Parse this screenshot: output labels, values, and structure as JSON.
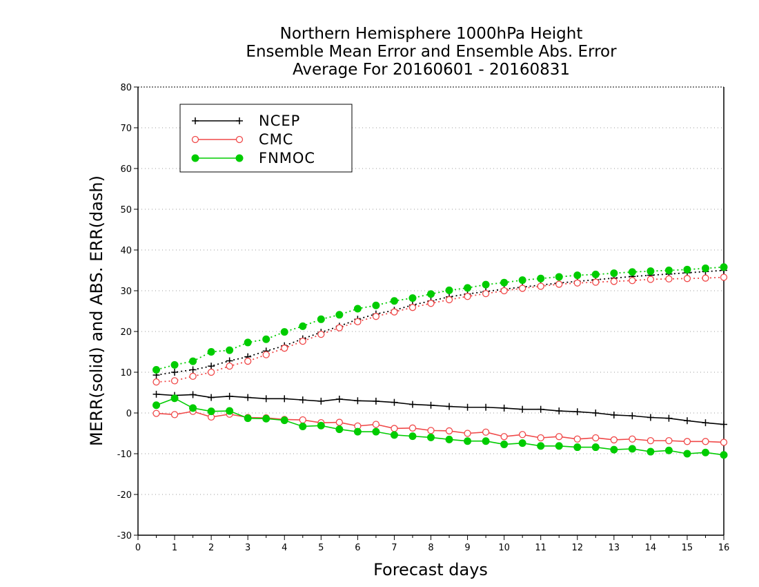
{
  "chart_data": {
    "type": "line",
    "title": [
      "Northern Hemisphere 1000hPa Height",
      "Ensemble Mean Error and Ensemble Abs. Error",
      "Average For 20160601 - 20160831"
    ],
    "xlabel": "Forecast days",
    "ylabel": "MERR(solid) and ABS. ERR(dash)",
    "xlim": [
      0,
      16
    ],
    "ylim": [
      -30,
      80
    ],
    "xticks": [
      0,
      1,
      2,
      3,
      4,
      5,
      6,
      7,
      8,
      9,
      10,
      11,
      12,
      13,
      14,
      15,
      16
    ],
    "yticks": [
      -30,
      -20,
      -10,
      0,
      10,
      20,
      30,
      40,
      50,
      60,
      70,
      80
    ],
    "grid": true,
    "legend_position": "top-left",
    "x": [
      0.5,
      1,
      1.5,
      2,
      2.5,
      3,
      3.5,
      4,
      4.5,
      5,
      5.5,
      6,
      6.5,
      7,
      7.5,
      8,
      8.5,
      9,
      9.5,
      10,
      10.5,
      11,
      11.5,
      12,
      12.5,
      13,
      13.5,
      14,
      14.5,
      15,
      15.5,
      16
    ],
    "series": [
      {
        "name": "NCEP",
        "color": "#000000",
        "marker": "plus",
        "merr": [
          4.6,
          4.3,
          4.5,
          3.8,
          4.1,
          3.8,
          3.5,
          3.5,
          3.2,
          2.9,
          3.4,
          3.0,
          2.9,
          2.6,
          2.1,
          1.9,
          1.6,
          1.4,
          1.4,
          1.2,
          0.9,
          0.9,
          0.5,
          0.3,
          0.0,
          -0.5,
          -0.7,
          -1.1,
          -1.3,
          -1.9,
          -2.4,
          -2.8
        ],
        "abs_err": [
          9.3,
          10.0,
          10.6,
          11.5,
          12.8,
          13.8,
          15.2,
          16.5,
          18.2,
          19.8,
          21.3,
          23.0,
          24.3,
          25.2,
          26.5,
          27.5,
          28.5,
          29.2,
          29.8,
          30.4,
          30.9,
          31.4,
          31.9,
          32.3,
          32.7,
          33.1,
          33.5,
          33.8,
          34.1,
          34.4,
          34.7,
          35.0
        ]
      },
      {
        "name": "CMC",
        "color": "#f04848",
        "marker": "open-circle",
        "merr": [
          -0.1,
          -0.4,
          0.4,
          -1.0,
          -0.3,
          -1.1,
          -1.2,
          -1.6,
          -1.7,
          -2.4,
          -2.3,
          -3.2,
          -2.8,
          -3.8,
          -3.7,
          -4.3,
          -4.4,
          -5.0,
          -4.7,
          -5.8,
          -5.3,
          -6.1,
          -5.8,
          -6.4,
          -6.1,
          -6.6,
          -6.4,
          -6.8,
          -6.8,
          -7.0,
          -7.0,
          -7.2
        ],
        "abs_err": [
          7.6,
          7.9,
          9.0,
          10.0,
          11.5,
          12.7,
          14.3,
          15.9,
          17.6,
          19.3,
          20.9,
          22.4,
          23.7,
          24.8,
          25.9,
          26.9,
          27.8,
          28.6,
          29.3,
          30.0,
          30.6,
          31.1,
          31.6,
          31.9,
          32.1,
          32.3,
          32.5,
          32.8,
          32.9,
          33.0,
          33.1,
          33.3
        ]
      },
      {
        "name": "FNMOC",
        "color": "#00cc00",
        "marker": "filled-circle",
        "merr": [
          1.9,
          3.6,
          1.2,
          0.4,
          0.5,
          -1.3,
          -1.4,
          -1.8,
          -3.3,
          -3.1,
          -4.0,
          -4.6,
          -4.6,
          -5.4,
          -5.7,
          -6.0,
          -6.5,
          -6.9,
          -6.9,
          -7.7,
          -7.4,
          -8.1,
          -8.1,
          -8.4,
          -8.4,
          -9.0,
          -8.8,
          -9.5,
          -9.2,
          -10.0,
          -9.7,
          -10.3
        ],
        "abs_err": [
          10.6,
          11.8,
          12.7,
          15.0,
          15.4,
          17.3,
          18.1,
          19.9,
          21.3,
          23.0,
          24.1,
          25.6,
          26.4,
          27.5,
          28.2,
          29.2,
          30.1,
          30.7,
          31.5,
          32.0,
          32.6,
          33.0,
          33.4,
          33.8,
          34.0,
          34.3,
          34.6,
          34.8,
          35.0,
          35.2,
          35.5,
          35.8
        ]
      }
    ]
  }
}
